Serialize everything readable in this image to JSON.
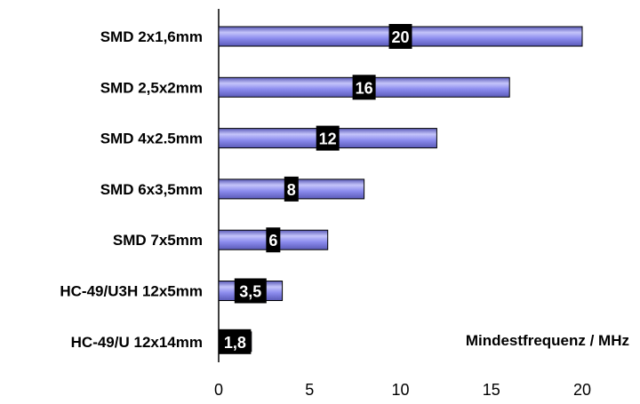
{
  "chart_data": {
    "type": "bar",
    "orientation": "horizontal",
    "categories": [
      "SMD 2x1,6mm",
      "SMD 2,5x2mm",
      "SMD 4x2.5mm",
      "SMD 6x3,5mm",
      "SMD 7x5mm",
      "HC-49/U3H 12x5mm",
      "HC-49/U 12x14mm"
    ],
    "values": [
      20,
      16,
      12,
      8,
      6,
      3.5,
      1.8
    ],
    "data_labels": [
      "20",
      "16",
      "12",
      "8",
      "6",
      "3,5",
      "1,8"
    ],
    "xlabel": "Mindestfrequenz / MHz",
    "xlim": [
      0,
      22.5
    ],
    "xticks": [
      0,
      5,
      10,
      15,
      20
    ],
    "grid": false,
    "colors": {
      "bar": "#8c8cee",
      "bar_highlight": "#c4c4fa",
      "bar_shade": "#5a5ab8",
      "label_bg": "#000000"
    }
  }
}
